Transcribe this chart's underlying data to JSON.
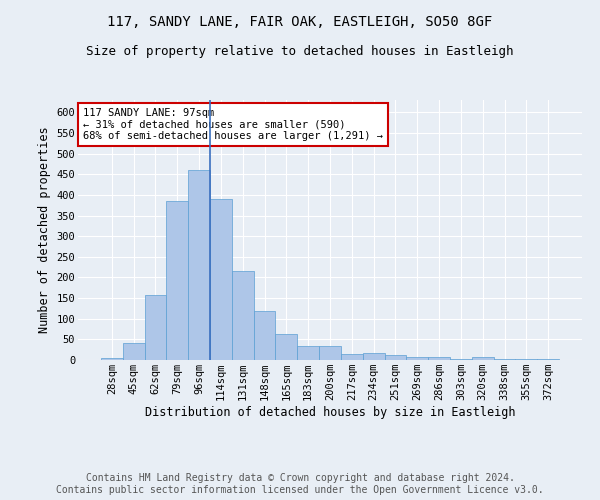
{
  "title_line1": "117, SANDY LANE, FAIR OAK, EASTLEIGH, SO50 8GF",
  "title_line2": "Size of property relative to detached houses in Eastleigh",
  "xlabel": "Distribution of detached houses by size in Eastleigh",
  "ylabel": "Number of detached properties",
  "bar_color": "#aec6e8",
  "bar_edge_color": "#5a9fd4",
  "vline_color": "#3a6fbf",
  "annotation_text": "117 SANDY LANE: 97sqm\n← 31% of detached houses are smaller (590)\n68% of semi-detached houses are larger (1,291) →",
  "annotation_box_color": "#ffffff",
  "annotation_edge_color": "#cc0000",
  "annotation_text_color": "#000000",
  "footer_line1": "Contains HM Land Registry data © Crown copyright and database right 2024.",
  "footer_line2": "Contains public sector information licensed under the Open Government Licence v3.0.",
  "categories": [
    "28sqm",
    "45sqm",
    "62sqm",
    "79sqm",
    "96sqm",
    "114sqm",
    "131sqm",
    "148sqm",
    "165sqm",
    "183sqm",
    "200sqm",
    "217sqm",
    "234sqm",
    "251sqm",
    "269sqm",
    "286sqm",
    "303sqm",
    "320sqm",
    "338sqm",
    "355sqm",
    "372sqm"
  ],
  "values": [
    5,
    42,
    158,
    385,
    460,
    390,
    215,
    118,
    63,
    35,
    35,
    15,
    16,
    11,
    7,
    7,
    2,
    7,
    2,
    2,
    2
  ],
  "vline_x_idx": 4,
  "ylim": [
    0,
    630
  ],
  "yticks": [
    0,
    50,
    100,
    150,
    200,
    250,
    300,
    350,
    400,
    450,
    500,
    550,
    600
  ],
  "background_color": "#e8eef5",
  "plot_background": "#e8eef5",
  "grid_color": "#ffffff",
  "title_fontsize": 10,
  "subtitle_fontsize": 9,
  "axis_label_fontsize": 8.5,
  "tick_fontsize": 7.5,
  "footer_fontsize": 7,
  "annot_fontsize": 7.5
}
